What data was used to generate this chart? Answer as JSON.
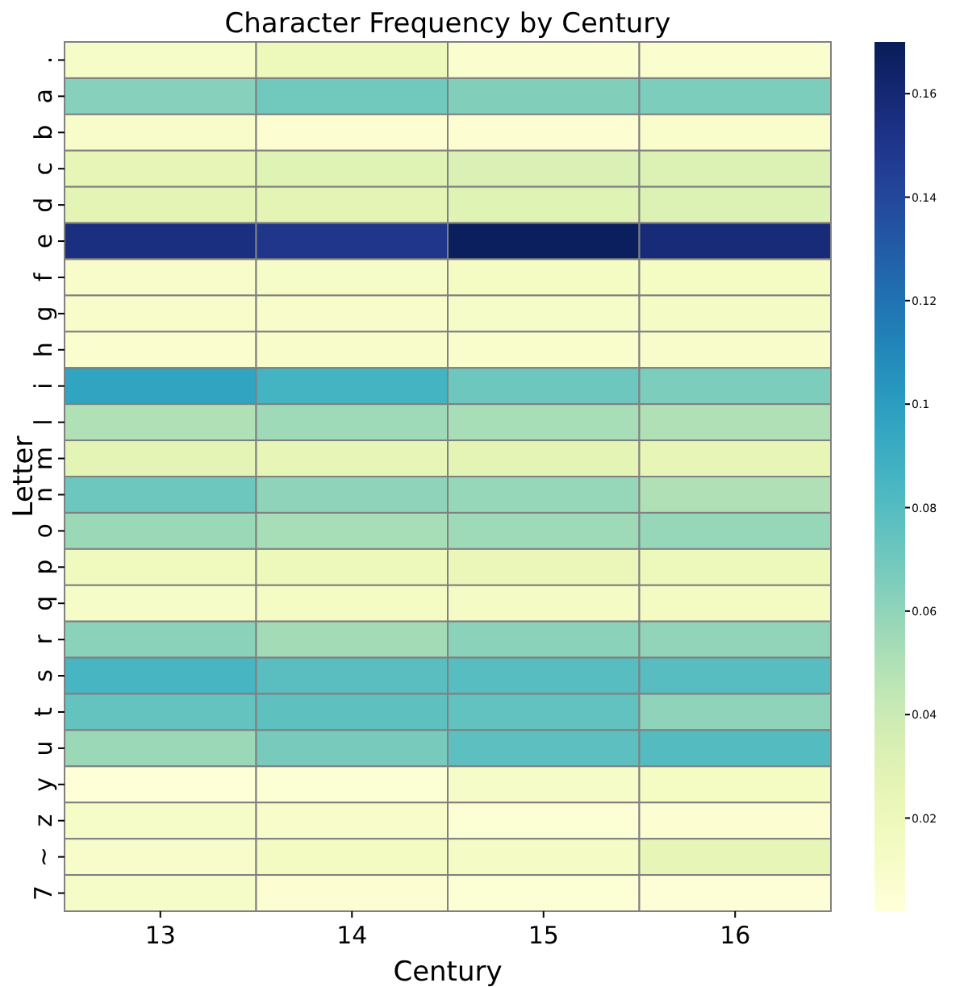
{
  "chart_data": {
    "type": "heatmap",
    "title": "Character Frequency by Century",
    "xlabel": "Century",
    "ylabel": "Letter",
    "categories": [
      "13",
      "14",
      "15",
      "16"
    ],
    "y_categories": [
      ".",
      "a",
      "b",
      "c",
      "d",
      "e",
      "f",
      "g",
      "h",
      "i",
      "l",
      "m",
      "n",
      "o",
      "p",
      "q",
      "r",
      "s",
      "t",
      "u",
      "y",
      "z",
      "~",
      "7"
    ],
    "cells": [
      [
        0.012,
        0.02,
        0.008,
        0.008
      ],
      [
        0.063,
        0.07,
        0.065,
        0.066
      ],
      [
        0.01,
        0.006,
        0.006,
        0.009
      ],
      [
        0.025,
        0.03,
        0.033,
        0.032
      ],
      [
        0.027,
        0.027,
        0.03,
        0.032
      ],
      [
        0.155,
        0.15,
        0.168,
        0.158
      ],
      [
        0.01,
        0.012,
        0.014,
        0.014
      ],
      [
        0.01,
        0.01,
        0.012,
        0.013
      ],
      [
        0.008,
        0.01,
        0.009,
        0.01
      ],
      [
        0.096,
        0.086,
        0.071,
        0.066
      ],
      [
        0.05,
        0.056,
        0.053,
        0.05
      ],
      [
        0.027,
        0.025,
        0.027,
        0.025
      ],
      [
        0.071,
        0.061,
        0.058,
        0.05
      ],
      [
        0.057,
        0.053,
        0.056,
        0.058
      ],
      [
        0.018,
        0.02,
        0.022,
        0.02
      ],
      [
        0.012,
        0.014,
        0.013,
        0.015
      ],
      [
        0.062,
        0.054,
        0.062,
        0.06
      ],
      [
        0.085,
        0.078,
        0.079,
        0.079
      ],
      [
        0.074,
        0.076,
        0.075,
        0.061
      ],
      [
        0.057,
        0.068,
        0.077,
        0.08
      ],
      [
        0.003,
        0.005,
        0.012,
        0.014
      ],
      [
        0.012,
        0.01,
        0.005,
        0.006
      ],
      [
        0.01,
        0.015,
        0.013,
        0.025
      ],
      [
        0.012,
        0.006,
        0.005,
        0.004
      ]
    ],
    "clim": [
      0.002,
      0.17
    ],
    "cticks": [
      0.02,
      0.04,
      0.06,
      0.08,
      0.1,
      0.12,
      0.14,
      0.16
    ]
  }
}
